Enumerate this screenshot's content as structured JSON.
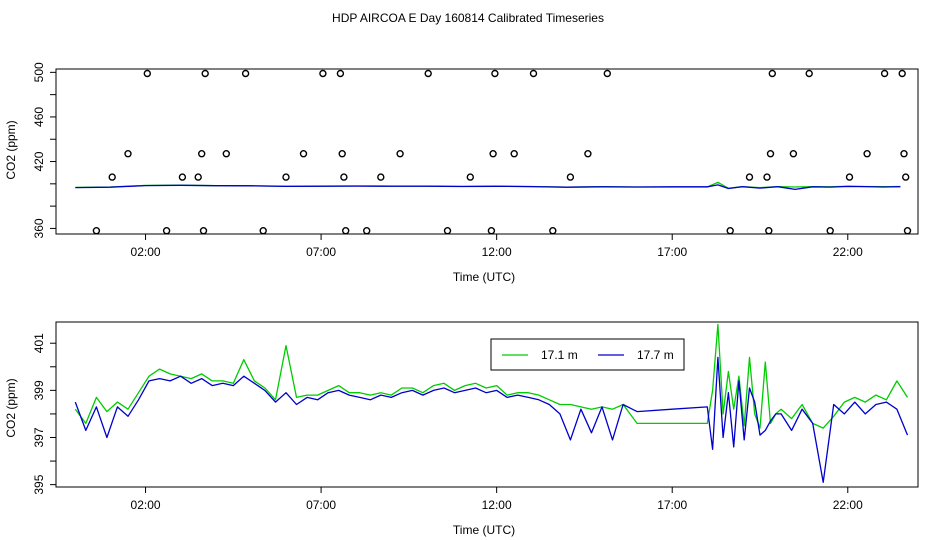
{
  "figure": {
    "title": "HDP AIRCOA E  Day 160814  Calibrated Timeseries"
  },
  "chart_data": [
    {
      "type": "line",
      "xlabel": "Time (UTC)",
      "ylabel": "CO2 (ppm)",
      "xlim": [
        -0.55,
        24.0
      ],
      "ylim": [
        355,
        503
      ],
      "x_ticks": [
        2,
        7,
        12,
        17,
        22
      ],
      "x_tick_labels": [
        "02:00",
        "07:00",
        "12:00",
        "17:00",
        "22:00"
      ],
      "y_ticks": [
        360,
        420,
        460,
        500
      ],
      "y_tick_labels": [
        "360",
        "420",
        "460",
        "500"
      ],
      "y_minor_ticks": [
        380,
        400,
        440,
        480
      ],
      "grid": false,
      "scatter_points": {
        "marker": "open-circle",
        "x": [
          0.6,
          1.05,
          1.5,
          2.05,
          2.6,
          3.05,
          3.5,
          3.6,
          3.65,
          3.7,
          4.3,
          4.85,
          5.35,
          6.0,
          6.5,
          7.05,
          7.55,
          7.6,
          7.65,
          7.7,
          8.3,
          8.7,
          9.25,
          10.05,
          10.6,
          11.25,
          11.85,
          11.9,
          11.95,
          12.5,
          13.05,
          13.6,
          14.1,
          14.6,
          15.15,
          18.65,
          19.2,
          19.7,
          19.75,
          19.8,
          19.85,
          20.45,
          20.9,
          21.5,
          22.05,
          22.55,
          23.05,
          23.55,
          23.6,
          23.65,
          23.7
        ],
        "y": [
          358,
          406,
          427,
          499,
          358,
          406,
          406,
          427,
          358,
          499,
          427,
          499,
          358,
          406,
          427,
          499,
          499,
          427,
          406,
          358,
          358,
          406,
          427,
          499,
          358,
          406,
          358,
          427,
          499,
          427,
          499,
          358,
          406,
          427,
          499,
          358,
          406,
          406,
          358,
          427,
          499,
          427,
          499,
          358,
          406,
          427,
          499,
          499,
          427,
          406,
          358
        ]
      },
      "series": [
        {
          "name": "17.1 m",
          "color": "#00cc00",
          "x": [
            0,
            1,
            2,
            3,
            4,
            5,
            6,
            7,
            8,
            9,
            10,
            11,
            12,
            13,
            14,
            15,
            16,
            17,
            18,
            18.3,
            18.6,
            19,
            19.5,
            20,
            20.5,
            21,
            21.5,
            22,
            22.5,
            23,
            23.5
          ],
          "y": [
            396.8,
            397.2,
            398.6,
            398.8,
            398.4,
            398.3,
            397.8,
            397.9,
            398.1,
            398.0,
            398.0,
            397.7,
            397.9,
            397.6,
            397.1,
            397.4,
            397.2,
            397.2,
            397.2,
            401.4,
            396.0,
            397.5,
            396.6,
            397.5,
            397.2,
            397.5,
            397.3,
            397.8,
            397.6,
            397.4,
            397.6
          ]
        },
        {
          "name": "17.7 m",
          "color": "#0000cc",
          "x": [
            0,
            1,
            2,
            3,
            4,
            5,
            6,
            7,
            8,
            9,
            10,
            11,
            12,
            13,
            14,
            15,
            16,
            17,
            18,
            18.3,
            18.6,
            19,
            19.5,
            20,
            20.5,
            21,
            21.5,
            22,
            22.5,
            23,
            23.5
          ],
          "y": [
            396.6,
            397.0,
            398.4,
            398.7,
            398.3,
            398.2,
            397.7,
            397.9,
            398.0,
            397.9,
            397.9,
            397.6,
            397.8,
            397.5,
            397.0,
            397.3,
            397.2,
            397.3,
            397.3,
            399.0,
            395.8,
            397.4,
            396.2,
            397.4,
            395.0,
            397.3,
            397.1,
            397.7,
            397.5,
            397.2,
            397.4
          ]
        }
      ]
    },
    {
      "type": "line",
      "xlabel": "Time (UTC)",
      "ylabel": "CO2 (ppm)",
      "xlim": [
        -0.55,
        24.0
      ],
      "ylim": [
        394.9,
        401.9
      ],
      "x_ticks": [
        2,
        7,
        12,
        17,
        22
      ],
      "x_tick_labels": [
        "02:00",
        "07:00",
        "12:00",
        "17:00",
        "22:00"
      ],
      "y_ticks": [
        395,
        397,
        399,
        401
      ],
      "y_tick_labels": [
        "395",
        "397",
        "399",
        "401"
      ],
      "y_minor_ticks": [
        396,
        398,
        400
      ],
      "grid": false,
      "legend": {
        "position": "top-center"
      },
      "series": [
        {
          "name": "17.1 m",
          "color": "#00cc00",
          "x": [
            0,
            0.3,
            0.6,
            0.9,
            1.2,
            1.5,
            1.8,
            2.1,
            2.4,
            2.7,
            3.0,
            3.3,
            3.6,
            3.9,
            4.2,
            4.5,
            4.8,
            5.1,
            5.4,
            5.7,
            6.0,
            6.3,
            6.6,
            6.9,
            7.2,
            7.5,
            7.8,
            8.1,
            8.4,
            8.7,
            9.0,
            9.3,
            9.6,
            9.9,
            10.2,
            10.5,
            10.8,
            11.1,
            11.4,
            11.7,
            12.0,
            12.3,
            12.6,
            12.9,
            13.2,
            13.5,
            13.8,
            14.1,
            14.4,
            14.7,
            15.0,
            15.3,
            15.6,
            16.0,
            17.0,
            18.0,
            18.15,
            18.3,
            18.45,
            18.6,
            18.75,
            18.9,
            19.05,
            19.2,
            19.35,
            19.5,
            19.65,
            19.8,
            19.95,
            20.1,
            20.4,
            20.7,
            21.0,
            21.3,
            21.6,
            21.9,
            22.2,
            22.5,
            22.8,
            23.1,
            23.4,
            23.7
          ],
          "y": [
            398.2,
            397.6,
            398.7,
            398.1,
            398.5,
            398.2,
            398.9,
            399.6,
            399.9,
            399.7,
            399.6,
            399.5,
            399.7,
            399.4,
            399.4,
            399.3,
            400.3,
            399.4,
            399.1,
            398.6,
            400.9,
            398.7,
            398.8,
            398.8,
            399.0,
            399.2,
            398.9,
            398.9,
            398.8,
            398.9,
            398.8,
            399.1,
            399.1,
            398.9,
            399.2,
            399.3,
            399.0,
            399.2,
            399.3,
            399.1,
            399.2,
            398.8,
            398.9,
            398.9,
            398.8,
            398.6,
            398.4,
            398.4,
            398.3,
            398.2,
            398.3,
            398.2,
            398.4,
            397.6,
            397.6,
            397.6,
            399.0,
            401.8,
            398.0,
            399.8,
            398.2,
            399.6,
            397.5,
            400.4,
            398.0,
            397.4,
            400.2,
            397.6,
            398.0,
            398.2,
            397.8,
            398.4,
            397.6,
            397.4,
            397.9,
            398.5,
            398.7,
            398.5,
            398.8,
            398.6,
            399.4,
            398.7
          ]
        },
        {
          "name": "17.7 m",
          "color": "#0000cc",
          "x": [
            0,
            0.3,
            0.6,
            0.9,
            1.2,
            1.5,
            1.8,
            2.1,
            2.4,
            2.7,
            3.0,
            3.3,
            3.6,
            3.9,
            4.2,
            4.5,
            4.8,
            5.1,
            5.4,
            5.7,
            6.0,
            6.3,
            6.6,
            6.9,
            7.2,
            7.5,
            7.8,
            8.1,
            8.4,
            8.7,
            9.0,
            9.3,
            9.6,
            9.9,
            10.2,
            10.5,
            10.8,
            11.1,
            11.4,
            11.7,
            12.0,
            12.3,
            12.6,
            12.9,
            13.2,
            13.5,
            13.8,
            14.1,
            14.4,
            14.7,
            15.0,
            15.3,
            15.6,
            16.0,
            17.0,
            18.0,
            18.15,
            18.3,
            18.45,
            18.6,
            18.75,
            18.9,
            19.05,
            19.2,
            19.35,
            19.5,
            19.65,
            19.8,
            19.95,
            20.1,
            20.4,
            20.7,
            21.0,
            21.3,
            21.6,
            21.9,
            22.2,
            22.5,
            22.8,
            23.1,
            23.4,
            23.7
          ],
          "y": [
            398.5,
            397.3,
            398.3,
            397.0,
            398.3,
            397.9,
            398.6,
            399.4,
            399.5,
            399.4,
            399.6,
            399.3,
            399.5,
            399.2,
            399.3,
            399.2,
            399.6,
            399.3,
            399.0,
            398.5,
            398.9,
            398.4,
            398.7,
            398.6,
            398.9,
            399.0,
            398.8,
            398.7,
            398.6,
            398.8,
            398.7,
            398.9,
            399.0,
            398.8,
            399.0,
            399.1,
            398.9,
            399.0,
            399.1,
            398.9,
            399.0,
            398.7,
            398.8,
            398.7,
            398.6,
            398.4,
            398.0,
            396.9,
            398.2,
            397.2,
            398.3,
            396.9,
            398.4,
            398.1,
            398.2,
            398.3,
            396.5,
            400.4,
            397.0,
            398.9,
            396.6,
            399.4,
            396.9,
            399.1,
            398.5,
            397.1,
            397.3,
            397.7,
            398.0,
            398.0,
            397.3,
            398.2,
            397.6,
            395.1,
            398.4,
            398.0,
            398.5,
            398.0,
            398.4,
            398.5,
            398.2,
            397.1
          ]
        }
      ]
    }
  ]
}
